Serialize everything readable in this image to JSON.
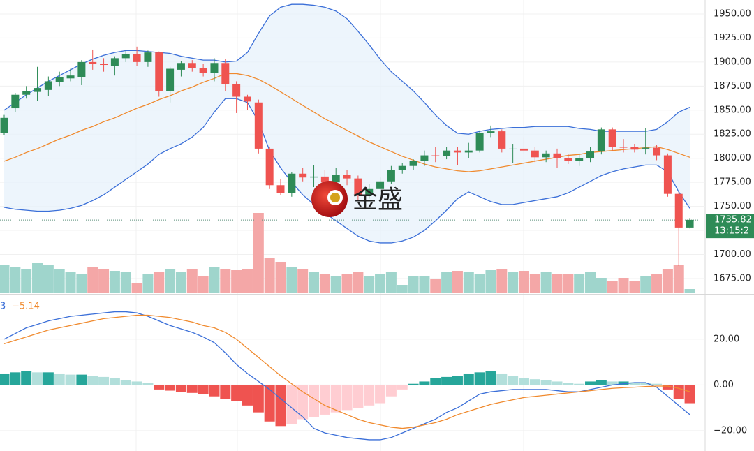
{
  "chart_data": {
    "type": "candlestick",
    "open": [
      1826,
      1852,
      1866,
      1869,
      1871,
      1879,
      1883,
      1884,
      1900,
      1898,
      1896,
      1904,
      1908,
      1900,
      1910,
      1870,
      1892,
      1899,
      1894,
      1889,
      1899,
      1877,
      1864,
      1858,
      1810,
      1772,
      1764,
      1784,
      1780,
      1781,
      1775,
      1783,
      1779,
      1762,
      1768,
      1776,
      1788,
      1792,
      1797,
      1803,
      1802,
      1808,
      1806,
      1808,
      1826,
      1828,
      1810,
      1810,
      1808,
      1801,
      1805,
      1800,
      1797,
      1800,
      1807,
      1830,
      1812,
      1812,
      1810,
      1811,
      1803,
      1763,
      1728
    ],
    "high": [
      1845,
      1868,
      1875,
      1895,
      1885,
      1890,
      1893,
      1902,
      1913,
      1904,
      1906,
      1912,
      1916,
      1912,
      1911,
      1895,
      1901,
      1902,
      1898,
      1904,
      1903,
      1880,
      1866,
      1861,
      1812,
      1778,
      1786,
      1790,
      1793,
      1788,
      1790,
      1788,
      1782,
      1773,
      1780,
      1792,
      1795,
      1799,
      1808,
      1812,
      1812,
      1812,
      1816,
      1829,
      1834,
      1830,
      1815,
      1822,
      1812,
      1808,
      1810,
      1804,
      1805,
      1812,
      1832,
      1832,
      1820,
      1815,
      1831,
      1814,
      1805,
      1765,
      1738
    ],
    "low": [
      1824,
      1848,
      1862,
      1860,
      1865,
      1875,
      1880,
      1876,
      1892,
      1890,
      1886,
      1900,
      1896,
      1895,
      1864,
      1858,
      1885,
      1890,
      1885,
      1880,
      1870,
      1847,
      1850,
      1805,
      1768,
      1762,
      1760,
      1776,
      1770,
      1770,
      1770,
      1772,
      1756,
      1758,
      1765,
      1773,
      1784,
      1788,
      1792,
      1796,
      1799,
      1793,
      1800,
      1806,
      1822,
      1806,
      1795,
      1804,
      1796,
      1796,
      1790,
      1794,
      1792,
      1796,
      1804,
      1808,
      1806,
      1806,
      1804,
      1798,
      1760,
      1688,
      1727
    ],
    "close": [
      1842,
      1866,
      1870,
      1873,
      1880,
      1884,
      1886,
      1900,
      1898,
      1897,
      1904,
      1908,
      1900,
      1910,
      1870,
      1893,
      1899,
      1894,
      1889,
      1899,
      1877,
      1864,
      1859,
      1810,
      1772,
      1764,
      1784,
      1780,
      1781,
      1775,
      1783,
      1779,
      1762,
      1768,
      1776,
      1788,
      1792,
      1797,
      1803,
      1802,
      1808,
      1806,
      1808,
      1826,
      1828,
      1810,
      1810,
      1808,
      1801,
      1805,
      1800,
      1797,
      1800,
      1807,
      1830,
      1812,
      1811,
      1809,
      1811,
      1803,
      1763,
      1728,
      1736
    ],
    "bands": {
      "upper": [
        1850,
        1858,
        1866,
        1873,
        1880,
        1886,
        1892,
        1898,
        1903,
        1907,
        1910,
        1912,
        1912,
        1911,
        1910,
        1909,
        1906,
        1904,
        1902,
        1902,
        1900,
        1901,
        1910,
        1930,
        1948,
        1957,
        1960,
        1960,
        1959,
        1957,
        1953,
        1945,
        1932,
        1918,
        1903,
        1890,
        1880,
        1870,
        1858,
        1845,
        1834,
        1826,
        1825,
        1828,
        1830,
        1831,
        1832,
        1832,
        1833,
        1833,
        1833,
        1833,
        1831,
        1830,
        1828,
        1828,
        1828,
        1828,
        1828,
        1830,
        1838,
        1848,
        1853
      ],
      "middle": [
        1797,
        1801,
        1806,
        1810,
        1815,
        1820,
        1824,
        1829,
        1833,
        1838,
        1842,
        1847,
        1852,
        1856,
        1861,
        1865,
        1870,
        1874,
        1879,
        1883,
        1888,
        1888,
        1886,
        1882,
        1876,
        1869,
        1862,
        1855,
        1848,
        1841,
        1835,
        1829,
        1823,
        1817,
        1812,
        1807,
        1802,
        1798,
        1794,
        1791,
        1789,
        1787,
        1786,
        1787,
        1789,
        1791,
        1793,
        1795,
        1797,
        1799,
        1801,
        1803,
        1804,
        1806,
        1807,
        1808,
        1809,
        1810,
        1811,
        1812,
        1809,
        1805,
        1801
      ],
      "lower": [
        1749,
        1747,
        1746,
        1745,
        1745,
        1746,
        1748,
        1751,
        1756,
        1762,
        1770,
        1778,
        1786,
        1794,
        1804,
        1810,
        1815,
        1822,
        1832,
        1848,
        1862,
        1862,
        1858,
        1838,
        1808,
        1790,
        1775,
        1762,
        1752,
        1743,
        1735,
        1727,
        1719,
        1714,
        1712,
        1712,
        1714,
        1718,
        1725,
        1735,
        1746,
        1758,
        1765,
        1760,
        1755,
        1752,
        1752,
        1754,
        1756,
        1758,
        1760,
        1764,
        1770,
        1776,
        1782,
        1786,
        1789,
        1791,
        1793,
        1793,
        1786,
        1765,
        1748
      ]
    },
    "volume": [
      40,
      38,
      35,
      44,
      40,
      35,
      30,
      28,
      38,
      35,
      32,
      30,
      15,
      28,
      30,
      35,
      30,
      35,
      25,
      38,
      35,
      33,
      35,
      115,
      50,
      45,
      38,
      35,
      30,
      28,
      25,
      28,
      30,
      25,
      28,
      30,
      12,
      25,
      25,
      20,
      30,
      32,
      30,
      28,
      33,
      35,
      30,
      32,
      28,
      30,
      28,
      28,
      28,
      30,
      22,
      18,
      22,
      18,
      25,
      28,
      35,
      40,
      6
    ],
    "volume_lim": [
      0,
      140
    ],
    "ylim": [
      1659,
      1964.5
    ],
    "yticks": [
      {
        "value": 1675,
        "label": "1675.00"
      },
      {
        "value": 1700,
        "label": "1700.00"
      },
      {
        "value": 1725,
        "label": "1725.00"
      },
      {
        "value": 1750,
        "label": "1750.00"
      },
      {
        "value": 1775,
        "label": "1775.00"
      },
      {
        "value": 1800,
        "label": "1800.00"
      },
      {
        "value": 1825,
        "label": "1825.00"
      },
      {
        "value": 1850,
        "label": "1850.00"
      },
      {
        "value": 1875,
        "label": "1875.00"
      },
      {
        "value": 1900,
        "label": "1900.00"
      },
      {
        "value": 1925,
        "label": "1925.00"
      },
      {
        "value": 1950,
        "label": "1950.00"
      }
    ],
    "last_price": {
      "value": 1735.82,
      "label": "1735.82"
    },
    "countdown": "13:15:2",
    "watermark": "金盛",
    "macd": {
      "legend": [
        "3",
        "−5.14"
      ],
      "macd": [
        20,
        22.5,
        25,
        26.5,
        28,
        29,
        30,
        30.5,
        31,
        31.5,
        32,
        32,
        31.5,
        30,
        28,
        26,
        24.5,
        23,
        21,
        18.5,
        14,
        9,
        5,
        1.5,
        -2,
        -6,
        -10,
        -14,
        -19,
        -21,
        -22,
        -23,
        -23.5,
        -24,
        -24,
        -23,
        -21,
        -19,
        -17,
        -15,
        -12,
        -10,
        -7,
        -4,
        -3,
        -2.5,
        -2,
        -2,
        -2,
        -2,
        -2.5,
        -3,
        -3,
        -2,
        -1,
        0,
        0.5,
        1,
        1,
        -1,
        -5,
        -9,
        -13
      ],
      "signal": [
        18,
        19.5,
        21,
        22.5,
        24,
        25,
        26,
        27,
        28,
        29,
        29.5,
        30,
        30.5,
        30.5,
        30,
        29.5,
        28.5,
        27.5,
        26,
        25,
        23,
        20,
        16,
        12,
        8,
        4,
        0.5,
        -3,
        -6,
        -9,
        -11,
        -13,
        -15,
        -16.5,
        -17.5,
        -18.5,
        -19,
        -18.5,
        -17.5,
        -16.5,
        -15,
        -13,
        -11.5,
        -10,
        -8.5,
        -7.5,
        -6.5,
        -5.5,
        -5,
        -4.5,
        -4,
        -3.5,
        -3,
        -2.5,
        -2,
        -1.5,
        -1.2,
        -1,
        -0.7,
        -0.5,
        -0.5,
        -1.5,
        -3
      ],
      "histogram": [
        5,
        5.5,
        6,
        5.5,
        5.5,
        5,
        4.5,
        4.5,
        4,
        3.5,
        3,
        2,
        1.5,
        1,
        -2,
        -2.5,
        -3,
        -3.5,
        -4,
        -5,
        -6,
        -7,
        -9,
        -12,
        -16,
        -18,
        -17,
        -15,
        -14,
        -13,
        -12,
        -11,
        -10,
        -9,
        -8,
        -5,
        -2,
        0.5,
        1.5,
        3,
        3.5,
        4,
        5,
        5.5,
        6,
        5,
        4,
        3,
        2.5,
        2,
        1.5,
        1,
        0.5,
        1.5,
        2,
        1.5,
        1.5,
        1.2,
        1,
        0.5,
        -2,
        -6,
        -8
      ],
      "ylim": [
        -28.9,
        39.5
      ],
      "yticks": [
        {
          "value": -20,
          "label": "−20.00"
        },
        {
          "value": 0,
          "label": "0.00"
        },
        {
          "value": 20,
          "label": "20.00"
        }
      ]
    },
    "colors": {
      "up": "#2e8b57",
      "down": "#ef5350",
      "volume_up": "#9fd5cc",
      "volume_down": "#f4a7a7",
      "band": "#3b6fd8",
      "middle": "#f08a2e",
      "band_fill": "#e6f1fb",
      "macd": "#3b6fd8",
      "signal": "#f08a2e",
      "hist_up_strong": "#26a69a",
      "hist_up_weak": "#b2dfdb",
      "hist_down_strong": "#ef5350",
      "hist_down_weak": "#ffcdd2",
      "price_tag": "#2e8b57"
    }
  }
}
